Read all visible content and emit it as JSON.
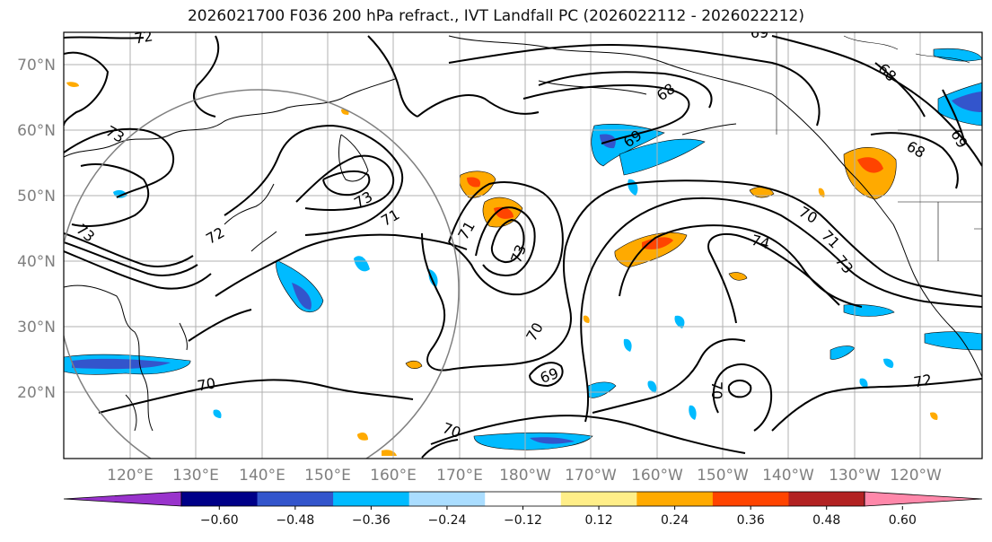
{
  "title": "2026021700 F036 200 hPa refract., IVT Landfall PC (2026022112 - 2026022212)",
  "lat_labels": [
    "70°N",
    "60°N",
    "50°N",
    "40°N",
    "30°N",
    "20°N"
  ],
  "lon_labels": [
    "120°E",
    "130°E",
    "140°E",
    "150°E",
    "160°E",
    "170°E",
    "180°W",
    "170°W",
    "160°W",
    "150°W",
    "140°W",
    "130°W",
    "120°W"
  ],
  "contour_labels": [
    "72",
    "69",
    "68",
    "68",
    "69",
    "73",
    "69",
    "68",
    "73",
    "73",
    "71",
    "72",
    "71",
    "73",
    "70",
    "74",
    "71",
    "73",
    "70",
    "69",
    "70",
    "72",
    "70",
    "70"
  ],
  "colorbar": {
    "ticks": [
      "−0.60",
      "−0.48",
      "−0.36",
      "−0.24",
      "−0.12",
      "0.12",
      "0.24",
      "0.36",
      "0.48",
      "0.60"
    ],
    "colors": [
      "#9933cc",
      "#000088",
      "#3355cc",
      "#00bbff",
      "#aaddff",
      "#ffffff",
      "#ffee88",
      "#ffaa00",
      "#ff4400",
      "#b22222",
      "#ff88aa"
    ]
  },
  "colors": {
    "contour": "#000000",
    "grid": "#b0b0b0",
    "coast": "#000000",
    "circle": "#808080"
  }
}
